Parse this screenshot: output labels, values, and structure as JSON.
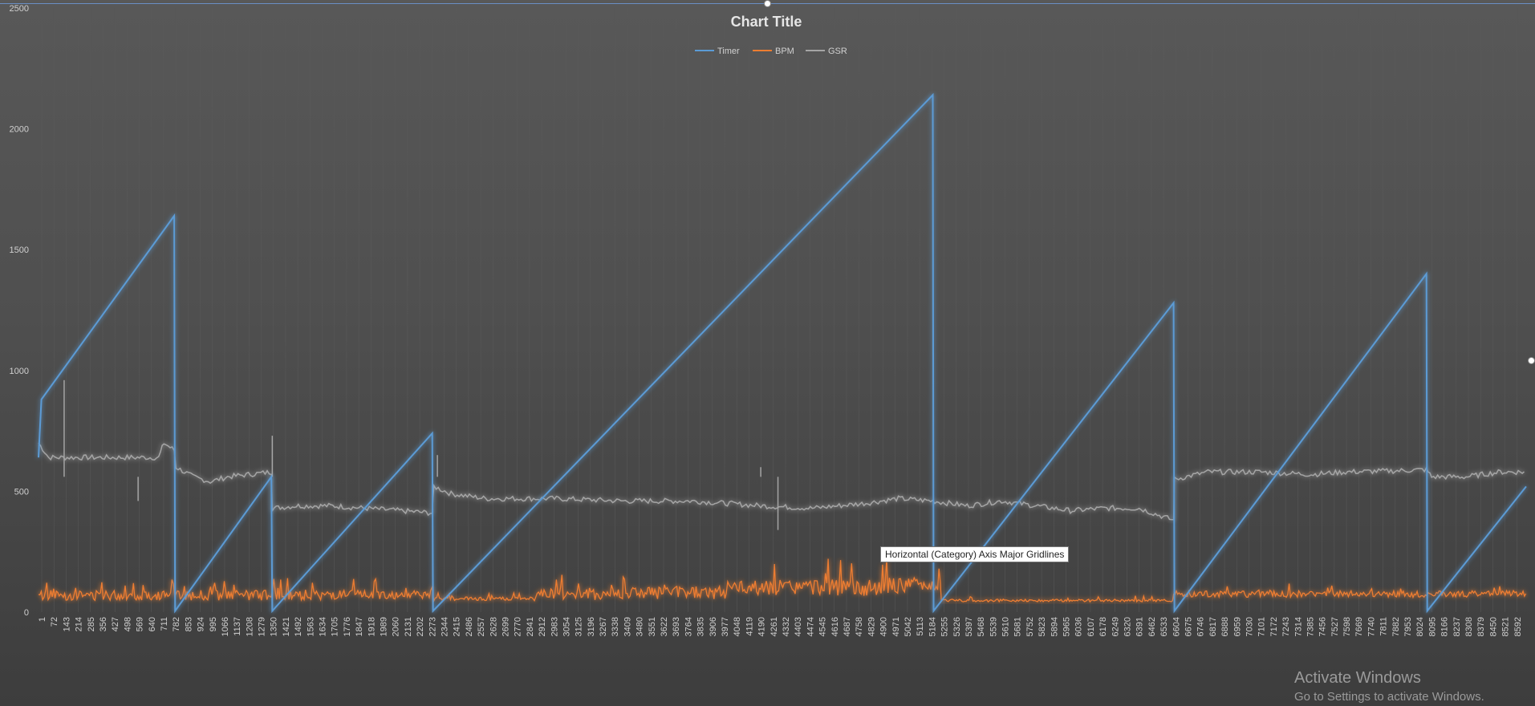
{
  "window": {
    "tooltip": "Horizontal (Category) Axis Major Gridlines",
    "watermark_title": "Activate Windows",
    "watermark_subtitle": "Go to Settings to activate Windows."
  },
  "chart_data": {
    "type": "line",
    "title": "Chart Title",
    "legend_position": "top",
    "ylim": [
      0,
      2500
    ],
    "y_ticks": [
      0,
      500,
      1000,
      1500,
      2000,
      2500
    ],
    "x_tick_labels": [
      "1",
      "72",
      "143",
      "214",
      "285",
      "356",
      "427",
      "498",
      "569",
      "640",
      "711",
      "782",
      "853",
      "924",
      "995",
      "1066",
      "1137",
      "1208",
      "1279",
      "1350",
      "1421",
      "1492",
      "1563",
      "1634",
      "1705",
      "1776",
      "1847",
      "1918",
      "1989",
      "2060",
      "2131",
      "2202",
      "2273",
      "2344",
      "2415",
      "2486",
      "2557",
      "2628",
      "2699",
      "2770",
      "2841",
      "2912",
      "2983",
      "3054",
      "3125",
      "3196",
      "3267",
      "3338",
      "3409",
      "3480",
      "3551",
      "3622",
      "3693",
      "3764",
      "3835",
      "3906",
      "3977",
      "4048",
      "4119",
      "4190",
      "4261",
      "4332",
      "4403",
      "4474",
      "4545",
      "4616",
      "4687",
      "4758",
      "4829",
      "4900",
      "4971",
      "5042",
      "5113",
      "5184",
      "5255",
      "5326",
      "5397",
      "5468",
      "5539",
      "5610",
      "5681",
      "5752",
      "5823",
      "5894",
      "5965",
      "6036",
      "6107",
      "6178",
      "6249",
      "6320",
      "6391",
      "6462",
      "6533",
      "6604",
      "6675",
      "6746",
      "6817",
      "6888",
      "6959",
      "7030",
      "7101",
      "7172",
      "7243",
      "7314",
      "7385",
      "7456",
      "7527",
      "7598",
      "7669",
      "7740",
      "7811",
      "7882",
      "7953",
      "8024",
      "8095",
      "8166",
      "8237",
      "8308",
      "8379",
      "8450",
      "8521",
      "8592"
    ],
    "x_range": [
      1,
      8650
    ],
    "grid": "horizontal-off, category gridlines",
    "series": [
      {
        "name": "Timer",
        "color": "#5b9bd5",
        "points": [
          [
            1,
            640
          ],
          [
            18,
            880
          ],
          [
            790,
            1640
          ],
          [
            795,
            5
          ],
          [
            1355,
            560
          ],
          [
            1360,
            5
          ],
          [
            2290,
            740
          ],
          [
            2295,
            5
          ],
          [
            5200,
            2140
          ],
          [
            5205,
            5
          ],
          [
            6600,
            1280
          ],
          [
            6605,
            5
          ],
          [
            8070,
            1400
          ],
          [
            8075,
            5
          ],
          [
            8650,
            520
          ]
        ]
      },
      {
        "name": "BPM",
        "color": "#ed7d31",
        "base_segments": [
          {
            "from": 1,
            "to": 2300,
            "base": 70,
            "amp": 70
          },
          {
            "from": 2300,
            "to": 2900,
            "base": 55,
            "amp": 25
          },
          {
            "from": 2900,
            "to": 3400,
            "base": 75,
            "amp": 85
          },
          {
            "from": 3400,
            "to": 4000,
            "base": 80,
            "amp": 90
          },
          {
            "from": 4000,
            "to": 4900,
            "base": 100,
            "amp": 110
          },
          {
            "from": 4900,
            "to": 5250,
            "base": 110,
            "amp": 110
          },
          {
            "from": 5250,
            "to": 6600,
            "base": 48,
            "amp": 18
          },
          {
            "from": 6600,
            "to": 8650,
            "base": 75,
            "amp": 45
          }
        ]
      },
      {
        "name": "GSR",
        "color": "#a5a5a5",
        "points": [
          [
            1,
            700
          ],
          [
            60,
            640
          ],
          [
            300,
            640
          ],
          [
            600,
            640
          ],
          [
            700,
            640
          ],
          [
            730,
            700
          ],
          [
            790,
            670
          ],
          [
            800,
            600
          ],
          [
            900,
            560
          ],
          [
            1000,
            540
          ],
          [
            1100,
            560
          ],
          [
            1355,
            580
          ],
          [
            1360,
            430
          ],
          [
            1500,
            440
          ],
          [
            1700,
            440
          ],
          [
            1900,
            430
          ],
          [
            2100,
            420
          ],
          [
            2290,
            410
          ],
          [
            2300,
            520
          ],
          [
            2400,
            490
          ],
          [
            2600,
            470
          ],
          [
            3000,
            470
          ],
          [
            3400,
            460
          ],
          [
            3800,
            460
          ],
          [
            4200,
            440
          ],
          [
            4500,
            430
          ],
          [
            4800,
            450
          ],
          [
            5000,
            470
          ],
          [
            5200,
            460
          ],
          [
            5400,
            440
          ],
          [
            5600,
            460
          ],
          [
            5800,
            440
          ],
          [
            6000,
            420
          ],
          [
            6200,
            430
          ],
          [
            6400,
            430
          ],
          [
            6600,
            380
          ],
          [
            6605,
            550
          ],
          [
            6800,
            580
          ],
          [
            7100,
            580
          ],
          [
            7400,
            570
          ],
          [
            7600,
            580
          ],
          [
            7900,
            585
          ],
          [
            8070,
            590
          ],
          [
            8100,
            560
          ],
          [
            8300,
            560
          ],
          [
            8500,
            580
          ],
          [
            8650,
            580
          ]
        ],
        "spikes": [
          [
            150,
            960
          ],
          [
            580,
            460
          ],
          [
            1360,
            730
          ],
          [
            2320,
            650
          ],
          [
            4200,
            600
          ],
          [
            4300,
            340
          ]
        ]
      }
    ]
  }
}
